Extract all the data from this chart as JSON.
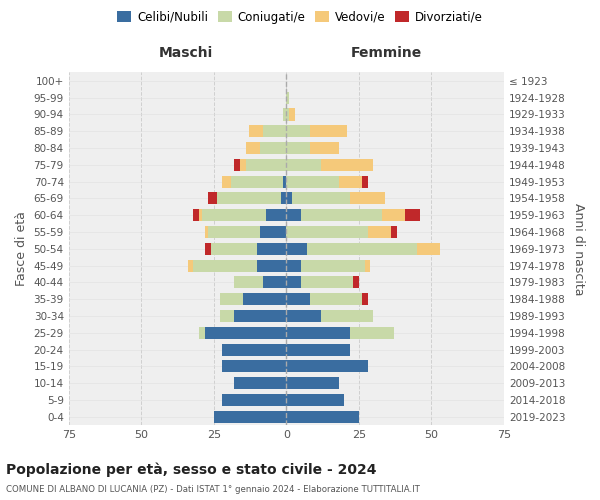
{
  "age_groups": [
    "100+",
    "95-99",
    "90-94",
    "85-89",
    "80-84",
    "75-79",
    "70-74",
    "65-69",
    "60-64",
    "55-59",
    "50-54",
    "45-49",
    "40-44",
    "35-39",
    "30-34",
    "25-29",
    "20-24",
    "15-19",
    "10-14",
    "5-9",
    "0-4"
  ],
  "birth_years": [
    "≤ 1923",
    "1924-1928",
    "1929-1933",
    "1934-1938",
    "1939-1943",
    "1944-1948",
    "1949-1953",
    "1954-1958",
    "1959-1963",
    "1964-1968",
    "1969-1973",
    "1974-1978",
    "1979-1983",
    "1984-1988",
    "1989-1993",
    "1994-1998",
    "1999-2003",
    "2004-2008",
    "2009-2013",
    "2014-2018",
    "2019-2023"
  ],
  "males": {
    "celibi": [
      0,
      0,
      0,
      0,
      0,
      0,
      1,
      2,
      7,
      9,
      10,
      10,
      8,
      15,
      18,
      28,
      22,
      22,
      18,
      22,
      25
    ],
    "coniugati": [
      0,
      0,
      1,
      8,
      9,
      14,
      18,
      22,
      22,
      18,
      16,
      22,
      10,
      8,
      5,
      2,
      0,
      0,
      0,
      0,
      0
    ],
    "vedovi": [
      0,
      0,
      0,
      5,
      5,
      2,
      3,
      0,
      1,
      1,
      0,
      2,
      0,
      0,
      0,
      0,
      0,
      0,
      0,
      0,
      0
    ],
    "divorziati": [
      0,
      0,
      0,
      0,
      0,
      2,
      0,
      3,
      2,
      0,
      2,
      0,
      0,
      0,
      0,
      0,
      0,
      0,
      0,
      0,
      0
    ]
  },
  "females": {
    "nubili": [
      0,
      0,
      0,
      0,
      0,
      0,
      0,
      2,
      5,
      0,
      7,
      5,
      5,
      8,
      12,
      22,
      22,
      28,
      18,
      20,
      25
    ],
    "coniugate": [
      0,
      1,
      1,
      8,
      8,
      12,
      18,
      20,
      28,
      28,
      38,
      22,
      18,
      18,
      18,
      15,
      0,
      0,
      0,
      0,
      0
    ],
    "vedove": [
      0,
      0,
      2,
      13,
      10,
      18,
      8,
      12,
      8,
      8,
      8,
      2,
      0,
      0,
      0,
      0,
      0,
      0,
      0,
      0,
      0
    ],
    "divorziate": [
      0,
      0,
      0,
      0,
      0,
      0,
      2,
      0,
      5,
      2,
      0,
      0,
      2,
      2,
      0,
      0,
      0,
      0,
      0,
      0,
      0
    ]
  },
  "xlim": 75,
  "colors": {
    "celibi": "#3a6da0",
    "coniugati": "#c8d9a8",
    "vedovi": "#f5c97a",
    "divorziati": "#c0282a"
  },
  "title": "Popolazione per età, sesso e stato civile - 2024",
  "subtitle": "COMUNE DI ALBANO DI LUCANIA (PZ) - Dati ISTAT 1° gennaio 2024 - Elaborazione TUTTITALIA.IT",
  "ylabel_left": "Fasce di età",
  "ylabel_right": "Anni di nascita",
  "xlabel_left": "Maschi",
  "xlabel_right": "Femmine",
  "bg_color": "#ffffff",
  "plot_bg": "#efefef",
  "grid_color": "#cccccc"
}
